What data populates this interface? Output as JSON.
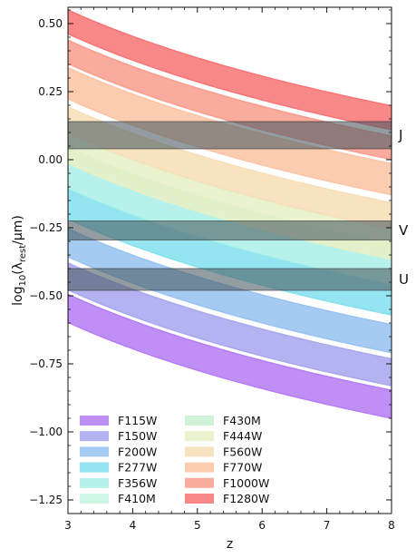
{
  "chart_data": {
    "type": "area",
    "xlabel": "z",
    "ylabel_main": "log",
    "ylabel_sub": "10",
    "ylabel_rest": "(λ",
    "ylabel_rest_sub": "rest",
    "ylabel_unit": "/μm)",
    "xlim": [
      3,
      8
    ],
    "ylim": [
      -1.3,
      0.56
    ],
    "x_ticks": [
      3,
      4,
      5,
      6,
      7,
      8
    ],
    "x_tick_labels": [
      "3",
      "4",
      "5",
      "6",
      "7",
      "8"
    ],
    "y_ticks": [
      0.5,
      0.25,
      0.0,
      -0.25,
      -0.5,
      -0.75,
      -1.0,
      -1.25
    ],
    "y_tick_labels": [
      "0.50",
      "0.25",
      "0.00",
      "−0.25",
      "−0.50",
      "−0.75",
      "−1.00",
      "−1.25"
    ],
    "series": [
      {
        "name": "F115W",
        "color": "#b57bf5",
        "lambda_min": 1.01,
        "lambda_max": 1.28
      },
      {
        "name": "F150W",
        "color": "#a7a6ee",
        "lambda_min": 1.33,
        "lambda_max": 1.67
      },
      {
        "name": "F200W",
        "color": "#96c2f1",
        "lambda_min": 1.76,
        "lambda_max": 2.23
      },
      {
        "name": "F277W",
        "color": "#81e1ee",
        "lambda_min": 2.42,
        "lambda_max": 3.13
      },
      {
        "name": "F356W",
        "color": "#a9f0e8",
        "lambda_min": 3.14,
        "lambda_max": 3.98
      },
      {
        "name": "F410M",
        "color": "#c4f5e0",
        "lambda_min": 3.87,
        "lambda_max": 4.3
      },
      {
        "name": "F430M",
        "color": "#c8f0cf",
        "lambda_min": 4.17,
        "lambda_max": 4.43
      },
      {
        "name": "F444W",
        "color": "#e6f0c7",
        "lambda_min": 3.88,
        "lambda_max": 4.98
      },
      {
        "name": "F560W",
        "color": "#f7deb6",
        "lambda_min": 5.02,
        "lambda_max": 6.25
      },
      {
        "name": "F770W",
        "color": "#fbc3a3",
        "lambda_min": 6.69,
        "lambda_max": 8.71
      },
      {
        "name": "F1000W",
        "color": "#f89c8c",
        "lambda_min": 9.02,
        "lambda_max": 11.0
      },
      {
        "name": "F1280W",
        "color": "#f87374",
        "lambda_min": 11.6,
        "lambda_max": 14.2
      }
    ],
    "reference_bands": [
      {
        "label": "J",
        "y_min": 0.04,
        "y_max": 0.14
      },
      {
        "label": "V",
        "y_min": -0.295,
        "y_max": -0.225
      },
      {
        "label": "U",
        "y_min": -0.48,
        "y_max": -0.4
      }
    ],
    "legend_position": "lower-left",
    "grid": false
  }
}
